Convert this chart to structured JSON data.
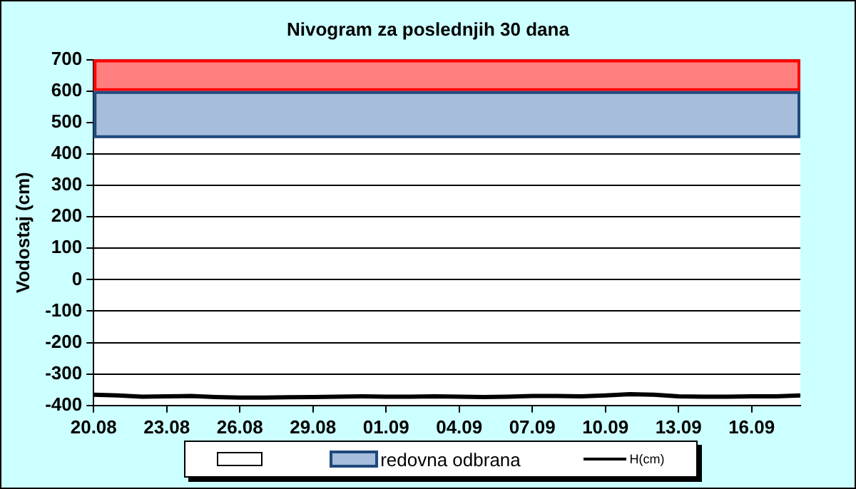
{
  "chart_data": {
    "type": "line",
    "title": "Nivogram za poslednjih 30 dana",
    "ylabel": "Vodostaj (cm)",
    "x": [
      "--08-20",
      "--08-21",
      "--08-22",
      "--08-23",
      "--08-24",
      "--08-25",
      "--08-26",
      "--08-27",
      "--08-28",
      "--08-29",
      "--08-30",
      "--08-31",
      "--09-01",
      "--09-02",
      "--09-03",
      "--09-04",
      "--09-05",
      "--09-06",
      "--09-07",
      "--09-08",
      "--09-09",
      "--09-10",
      "--09-11",
      "--09-12",
      "--09-13",
      "--09-14",
      "--09-15",
      "--09-16",
      "--09-17",
      "--09-18"
    ],
    "series": [
      {
        "name": "H(cm)",
        "color": "#000000",
        "values": [
          -366,
          -368,
          -372,
          -371,
          -370,
          -373,
          -375,
          -375,
          -374,
          -373,
          -372,
          -371,
          -372,
          -372,
          -371,
          -372,
          -373,
          -372,
          -370,
          -370,
          -371,
          -368,
          -364,
          -366,
          -371,
          -372,
          -372,
          -371,
          -371,
          -368
        ]
      }
    ],
    "xlim": [
      "--08-20",
      "--09-18"
    ],
    "xticks": [
      {
        "value": "--08-20",
        "label": "20.08"
      },
      {
        "value": "--08-23",
        "label": "23.08"
      },
      {
        "value": "--08-26",
        "label": "26.08"
      },
      {
        "value": "--08-29",
        "label": "29.08"
      },
      {
        "value": "--09-01",
        "label": "01.09"
      },
      {
        "value": "--09-04",
        "label": "04.09"
      },
      {
        "value": "--09-07",
        "label": "07.09"
      },
      {
        "value": "--09-10",
        "label": "10.09"
      },
      {
        "value": "--09-13",
        "label": "13.09"
      },
      {
        "value": "--09-16",
        "label": "16.09"
      }
    ],
    "ylim": [
      -400,
      700
    ],
    "yticks": [
      -400,
      -300,
      -200,
      -100,
      0,
      100,
      200,
      300,
      400,
      500,
      600,
      700
    ],
    "bands": [
      {
        "axis": "y",
        "from": 600,
        "to": 700,
        "color": "#ff7f7f"
      },
      {
        "axis": "y",
        "from": 450,
        "to": 600,
        "label": "redovna odbrana",
        "color": "#a6bddb"
      }
    ],
    "grid": "y",
    "legend": "bottom",
    "marker": "none",
    "line_style": "solid"
  }
}
